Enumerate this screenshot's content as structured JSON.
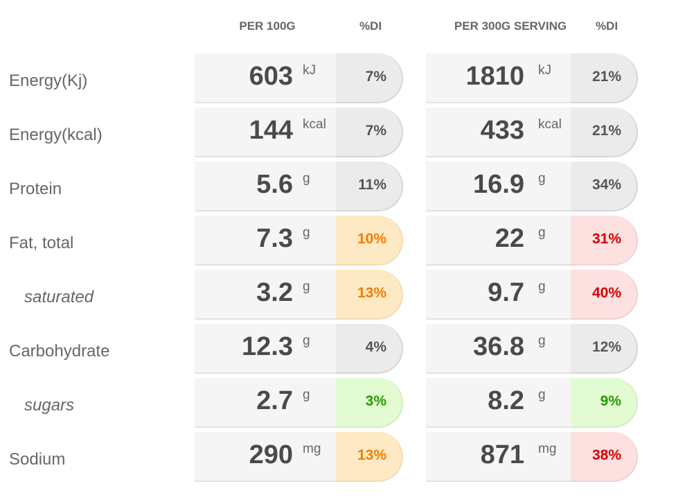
{
  "headers": {
    "per100": "PER 100G",
    "di1": "%DI",
    "perServing": "PER 300G SERVING",
    "di2": "%DI"
  },
  "rows": [
    {
      "label": "Energy(Kj)",
      "sub": false,
      "v100": "603",
      "u100": "kJ",
      "di100": "7%",
      "c100": "neutral",
      "vs": "1810",
      "us": "kJ",
      "dis": "21%",
      "cs": "neutral"
    },
    {
      "label": "Energy(kcal)",
      "sub": false,
      "v100": "144",
      "u100": "kcal",
      "di100": "7%",
      "c100": "neutral",
      "vs": "433",
      "us": "kcal",
      "dis": "21%",
      "cs": "neutral"
    },
    {
      "label": "Protein",
      "sub": false,
      "v100": "5.6",
      "u100": "g",
      "di100": "11%",
      "c100": "neutral",
      "vs": "16.9",
      "us": "g",
      "dis": "34%",
      "cs": "neutral"
    },
    {
      "label": "Fat, total",
      "sub": false,
      "v100": "7.3",
      "u100": "g",
      "di100": "10%",
      "c100": "orange",
      "vs": "22",
      "us": "g",
      "dis": "31%",
      "cs": "red"
    },
    {
      "label": "saturated",
      "sub": true,
      "v100": "3.2",
      "u100": "g",
      "di100": "13%",
      "c100": "orange",
      "vs": "9.7",
      "us": "g",
      "dis": "40%",
      "cs": "red"
    },
    {
      "label": "Carbohydrate",
      "sub": false,
      "v100": "12.3",
      "u100": "g",
      "di100": "4%",
      "c100": "neutral",
      "vs": "36.8",
      "us": "g",
      "dis": "12%",
      "cs": "neutral"
    },
    {
      "label": "sugars",
      "sub": true,
      "v100": "2.7",
      "u100": "g",
      "di100": "3%",
      "c100": "green",
      "vs": "8.2",
      "us": "g",
      "dis": "9%",
      "cs": "green"
    },
    {
      "label": "Sodium",
      "sub": false,
      "v100": "290",
      "u100": "mg",
      "di100": "13%",
      "c100": "orange",
      "vs": "871",
      "us": "mg",
      "dis": "38%",
      "cs": "red"
    }
  ]
}
